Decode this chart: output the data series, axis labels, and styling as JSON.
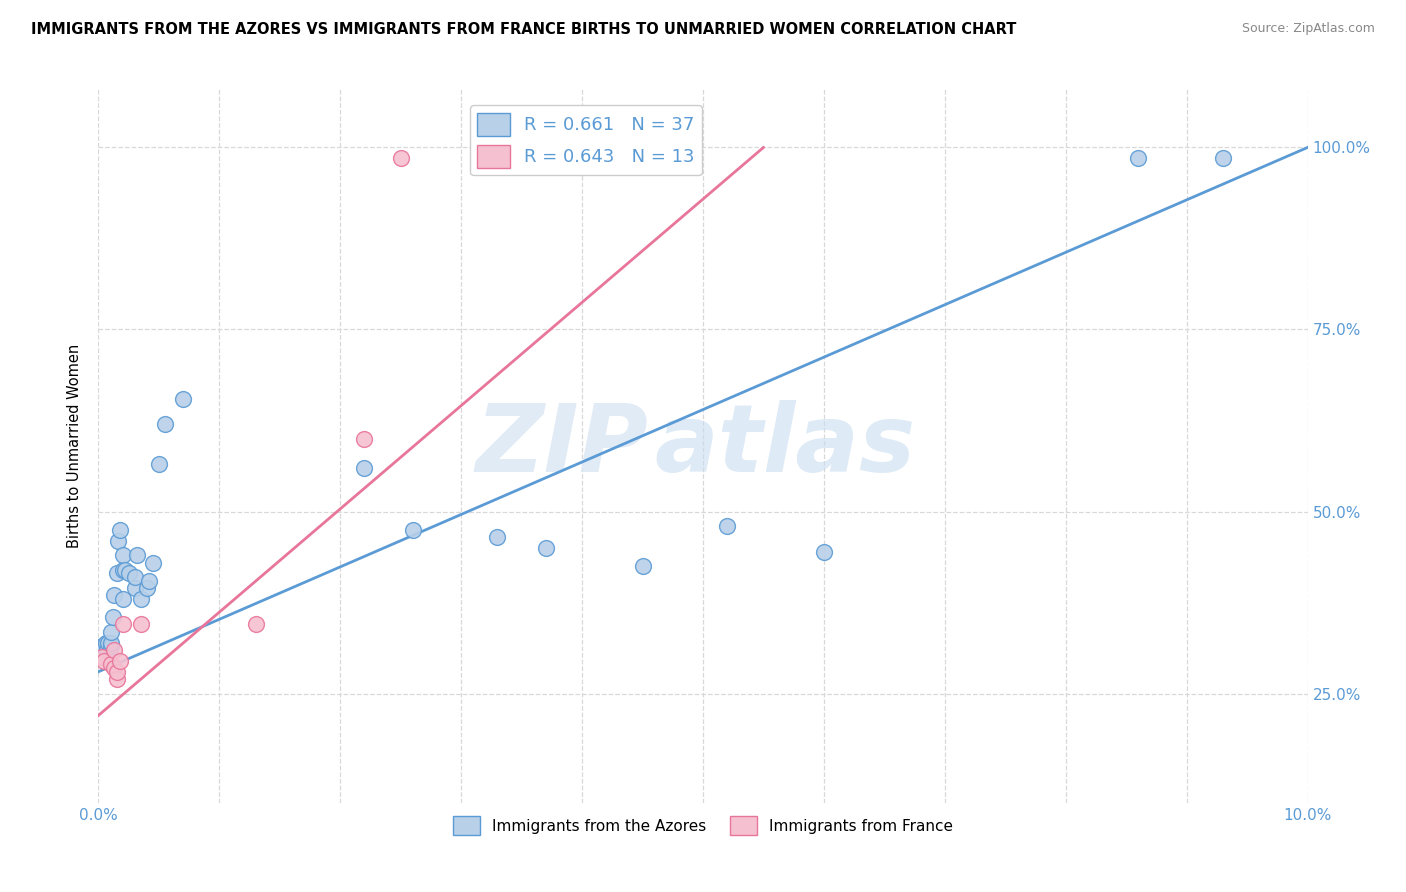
{
  "title": "IMMIGRANTS FROM THE AZORES VS IMMIGRANTS FROM FRANCE BIRTHS TO UNMARRIED WOMEN CORRELATION CHART",
  "source": "Source: ZipAtlas.com",
  "ylabel": "Births to Unmarried Women",
  "xlim": [
    0.0,
    0.1
  ],
  "ylim": [
    0.1,
    1.08
  ],
  "ytick_labels": [
    "25.0%",
    "50.0%",
    "75.0%",
    "100.0%"
  ],
  "ytick_positions": [
    0.25,
    0.5,
    0.75,
    1.0
  ],
  "xtick_positions": [
    0.0,
    0.01,
    0.02,
    0.03,
    0.04,
    0.05,
    0.06,
    0.07,
    0.08,
    0.09,
    0.1
  ],
  "xtick_labels": [
    "0.0%",
    "",
    "",
    "",
    "",
    "",
    "",
    "",
    "",
    "",
    "10.0%"
  ],
  "watermark_zip": "ZIP",
  "watermark_atlas": "atlas",
  "azores_x": [
    0.0003,
    0.0005,
    0.0006,
    0.0007,
    0.0008,
    0.001,
    0.001,
    0.001,
    0.0012,
    0.0013,
    0.0015,
    0.0016,
    0.0018,
    0.002,
    0.002,
    0.002,
    0.0022,
    0.0025,
    0.003,
    0.003,
    0.0032,
    0.0035,
    0.004,
    0.0042,
    0.0045,
    0.005,
    0.0055,
    0.007,
    0.022,
    0.026,
    0.033,
    0.037,
    0.045,
    0.052,
    0.06,
    0.086,
    0.093
  ],
  "azores_y": [
    0.315,
    0.315,
    0.32,
    0.31,
    0.32,
    0.315,
    0.32,
    0.335,
    0.355,
    0.385,
    0.415,
    0.46,
    0.475,
    0.42,
    0.44,
    0.38,
    0.42,
    0.415,
    0.395,
    0.41,
    0.44,
    0.38,
    0.395,
    0.405,
    0.43,
    0.565,
    0.62,
    0.655,
    0.56,
    0.475,
    0.465,
    0.45,
    0.425,
    0.48,
    0.445,
    0.985,
    0.985
  ],
  "france_x": [
    0.0003,
    0.0005,
    0.001,
    0.0013,
    0.0013,
    0.0015,
    0.0015,
    0.0018,
    0.002,
    0.0035,
    0.013,
    0.022,
    0.025
  ],
  "france_y": [
    0.3,
    0.295,
    0.29,
    0.285,
    0.31,
    0.27,
    0.28,
    0.295,
    0.345,
    0.345,
    0.345,
    0.6,
    0.985
  ],
  "azores_color": "#b8d0e8",
  "france_color": "#f5c0d0",
  "azores_edge_color": "#5b9bd5",
  "france_edge_color": "#e8759a",
  "azores_line_color": "#5b9bd5",
  "france_line_color": "#e8759a",
  "tick_color": "#5b9bd5",
  "R_azores": "0.661",
  "N_azores": "37",
  "R_france": "0.643",
  "N_france": "13",
  "legend_label_azores": "Immigrants from the Azores",
  "legend_label_france": "Immigrants from France",
  "background_color": "#ffffff",
  "grid_color": "#d8d8d8",
  "az_line_x0": 0.0,
  "az_line_x1": 0.1,
  "az_line_y0": 0.28,
  "az_line_y1": 1.0,
  "fr_line_x0": 0.0,
  "fr_line_x1": 0.055,
  "fr_line_y0": 0.22,
  "fr_line_y1": 1.0
}
